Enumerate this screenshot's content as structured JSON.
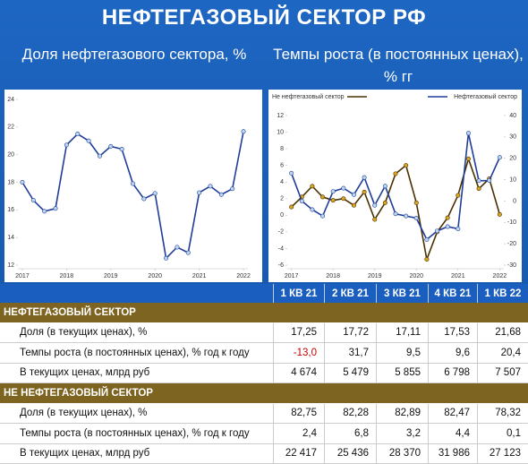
{
  "title": "НЕФТЕГАЗОВЫЙ СЕКТОР РФ",
  "chart_data": [
    {
      "type": "line",
      "title": "Доля нефтегазового сектора, %",
      "x": [
        2017,
        2017.25,
        2017.5,
        2017.75,
        2018,
        2018.25,
        2018.5,
        2018.75,
        2019,
        2019.25,
        2019.5,
        2019.75,
        2020,
        2020.25,
        2020.5,
        2020.75,
        2021,
        2021.25,
        2021.5,
        2021.75,
        2022
      ],
      "xlim": [
        2016.9,
        2022.1
      ],
      "xticks": [
        2017,
        2018,
        2019,
        2020,
        2021,
        2022
      ],
      "ylim": [
        12,
        24
      ],
      "yticks": [
        12,
        14,
        16,
        18,
        20,
        22,
        24
      ],
      "series": [
        {
          "color": "#1f3d99",
          "marker_color": "#bcd6ee",
          "values": [
            18.0,
            16.7,
            15.9,
            16.1,
            20.7,
            21.5,
            21.0,
            19.9,
            20.6,
            20.4,
            17.9,
            16.8,
            17.2,
            12.5,
            13.3,
            12.9,
            17.25,
            17.72,
            17.11,
            17.53,
            21.68
          ]
        }
      ]
    },
    {
      "type": "line",
      "title": "Темпы роста (в постоянных ценах), % гг",
      "x": [
        2017,
        2017.25,
        2017.5,
        2017.75,
        2018,
        2018.25,
        2018.5,
        2018.75,
        2019,
        2019.25,
        2019.5,
        2019.75,
        2020,
        2020.25,
        2020.5,
        2020.75,
        2021,
        2021.25,
        2021.5,
        2021.75,
        2022
      ],
      "xlim": [
        2016.9,
        2022.1
      ],
      "xticks": [
        2017,
        2018,
        2019,
        2020,
        2021,
        2022
      ],
      "ylim": [
        -6,
        12
      ],
      "yticks": [
        -6,
        -4,
        -2,
        0,
        2,
        4,
        6,
        8,
        10,
        12
      ],
      "y2lim": [
        -30,
        40
      ],
      "y2ticks": [
        -30,
        -20,
        -10,
        0,
        10,
        20,
        30,
        40
      ],
      "series": [
        {
          "name": "Не нефтегазовый сектор",
          "color": "#4a3000",
          "marker_color": "#d9a520",
          "values": [
            1.0,
            2.2,
            3.5,
            2.2,
            1.8,
            2.0,
            1.2,
            2.8,
            -0.5,
            1.5,
            5.0,
            6.0,
            1.5,
            -5.3,
            -2.0,
            -0.3,
            2.4,
            6.8,
            3.2,
            4.4,
            0.1
          ]
        },
        {
          "name": "Нефтегазовый сектор",
          "axis": "y2",
          "color": "#1f3d99",
          "marker_color": "#bcd6ee",
          "values": [
            13,
            0,
            -4,
            -7,
            4.5,
            6,
            3,
            11,
            -2,
            7,
            -6,
            -7,
            -8,
            -18,
            -14,
            -12,
            -13.0,
            31.7,
            9.5,
            9.6,
            20.4
          ]
        }
      ]
    }
  ],
  "table": {
    "columns": [
      "1 КВ 21",
      "2 КВ 21",
      "3 КВ 21",
      "4 КВ 21",
      "1 КВ 22"
    ],
    "negative_color": "#c00000",
    "sections": [
      {
        "title": "НЕФТЕГАЗОВЫЙ СЕКТОР",
        "rows": [
          {
            "label": "Доля (в текущих ценах), %",
            "values": [
              "17,25",
              "17,72",
              "17,11",
              "17,53",
              "21,68"
            ]
          },
          {
            "label": "Темпы роста (в постоянных ценах), % год к году",
            "values": [
              "-13,0",
              "31,7",
              "9,5",
              "9,6",
              "20,4"
            ]
          },
          {
            "label": "В текущих ценах, млрд руб",
            "values": [
              "4 674",
              "5 479",
              "5 855",
              "6 798",
              "7 507"
            ]
          }
        ]
      },
      {
        "title": "НЕ НЕФТЕГАЗОВЫЙ СЕКТОР",
        "rows": [
          {
            "label": "Доля (в текущих ценах), %",
            "values": [
              "82,75",
              "82,28",
              "82,89",
              "82,47",
              "78,32"
            ]
          },
          {
            "label": "Темпы роста (в постоянных ценах), % год к году",
            "values": [
              "2,4",
              "6,8",
              "3,2",
              "4,4",
              "0,1"
            ]
          },
          {
            "label": "В текущих ценах, млрд руб",
            "values": [
              "22 417",
              "25 436",
              "28 370",
              "31 986",
              "27 123"
            ]
          }
        ]
      }
    ]
  }
}
